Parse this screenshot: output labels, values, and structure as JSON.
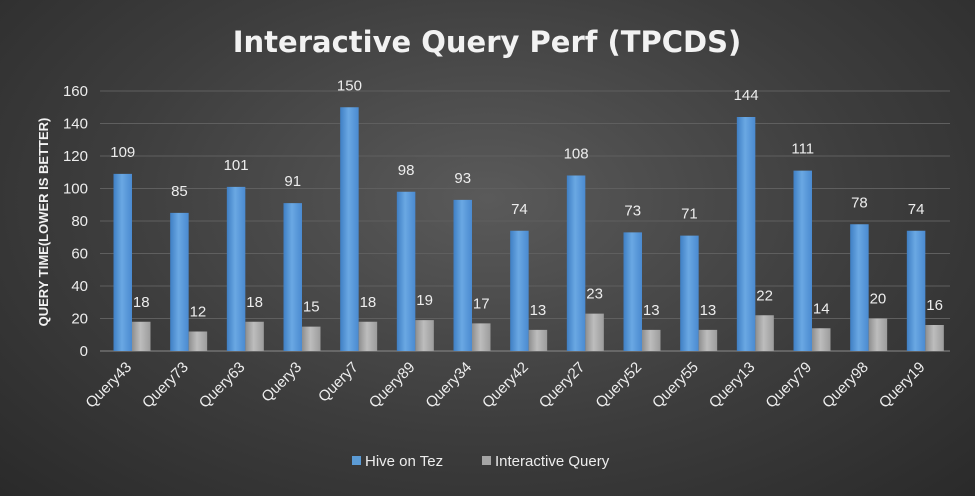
{
  "chart_data": {
    "type": "bar",
    "title": "Interactive Query Perf (TPCDS)",
    "xlabel": "",
    "ylabel": "QUERY TIME(LOWER IS BETTER)",
    "ylim": [
      0,
      160
    ],
    "yticks": [
      0,
      20,
      40,
      60,
      80,
      100,
      120,
      140,
      160
    ],
    "grid": true,
    "legend_position": "bottom",
    "categories": [
      "Query43",
      "Query73",
      "Query63",
      "Query3",
      "Query7",
      "Query89",
      "Query34",
      "Query42",
      "Query27",
      "Query52",
      "Query55",
      "Query13",
      "Query79",
      "Query98",
      "Query19"
    ],
    "series": [
      {
        "name": "Hive on Tez",
        "color": "#5b9bd5",
        "values": [
          109,
          85,
          101,
          91,
          150,
          98,
          93,
          74,
          108,
          73,
          71,
          144,
          111,
          78,
          74
        ]
      },
      {
        "name": "Interactive Query",
        "color": "#a5a5a5",
        "values": [
          18,
          12,
          18,
          15,
          18,
          19,
          17,
          13,
          23,
          13,
          13,
          22,
          14,
          20,
          16
        ]
      }
    ]
  }
}
